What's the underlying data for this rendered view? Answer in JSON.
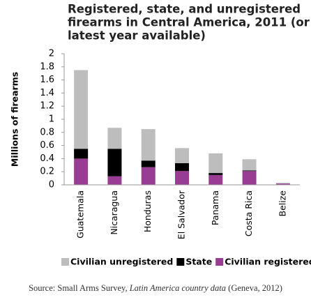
{
  "chart_data": {
    "type": "stacked-bar",
    "title": [
      "Registered, state, and unregistered",
      "firearms in Central America, 2011 (or",
      "latest year available)"
    ],
    "y_label": "Millions of firearms",
    "categories": [
      "Guatemala",
      "Nicaragua",
      "Honduras",
      "El Salvador",
      "Panama",
      "Costa Rica",
      "Belize"
    ],
    "series": [
      {
        "name": "Civilian registered",
        "color": "#993d94",
        "values": [
          0.4,
          0.13,
          0.27,
          0.21,
          0.15,
          0.21,
          0.02
        ]
      },
      {
        "name": "State",
        "color": "#000000",
        "values": [
          0.15,
          0.42,
          0.1,
          0.12,
          0.03,
          0.01,
          0
        ]
      },
      {
        "name": "Civilian unregistered",
        "color": "#bdbdbd",
        "values": [
          1.2,
          0.32,
          0.48,
          0.23,
          0.3,
          0.17,
          0.01
        ]
      }
    ],
    "legend_order": [
      2,
      1,
      0
    ],
    "ylim": [
      0,
      2
    ],
    "yticks": [
      0,
      0.2,
      0.4,
      0.6,
      0.8,
      1,
      1.2,
      1.4,
      1.6,
      1.8,
      2
    ],
    "source": [
      "Source: Small Arms Survey, ",
      "Latin America country data",
      " (Geneva, 2012)"
    ]
  }
}
